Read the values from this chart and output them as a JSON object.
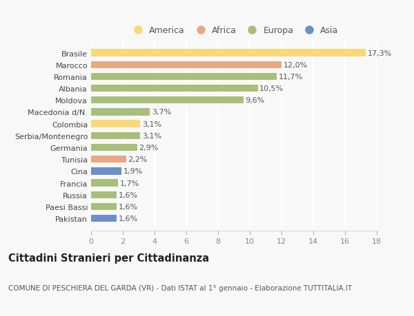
{
  "categories": [
    "Pakistan",
    "Paesi Bassi",
    "Russia",
    "Francia",
    "Cina",
    "Tunisia",
    "Germania",
    "Serbia/Montenegro",
    "Colombia",
    "Macedonia d/N.",
    "Moldova",
    "Albania",
    "Romania",
    "Marocco",
    "Brasile"
  ],
  "values": [
    1.6,
    1.6,
    1.6,
    1.7,
    1.9,
    2.2,
    2.9,
    3.1,
    3.1,
    3.7,
    9.6,
    10.5,
    11.7,
    12.0,
    17.3
  ],
  "labels": [
    "1,6%",
    "1,6%",
    "1,6%",
    "1,7%",
    "1,9%",
    "2,2%",
    "2,9%",
    "3,1%",
    "3,1%",
    "3,7%",
    "9,6%",
    "10,5%",
    "11,7%",
    "12,0%",
    "17,3%"
  ],
  "colors": [
    "#6b8fcc",
    "#a8bf7a",
    "#a8bf7a",
    "#a8bf7a",
    "#6b8fcc",
    "#e8a882",
    "#a8bf7a",
    "#a8bf7a",
    "#f8d878",
    "#a8bf7a",
    "#a8bf7a",
    "#a8bf7a",
    "#a8bf7a",
    "#e8a882",
    "#f8d878"
  ],
  "legend": [
    {
      "label": "America",
      "color": "#f8d878"
    },
    {
      "label": "Africa",
      "color": "#e8a882"
    },
    {
      "label": "Europa",
      "color": "#a8bf7a"
    },
    {
      "label": "Asia",
      "color": "#6b8fcc"
    }
  ],
  "title": "Cittadini Stranieri per Cittadinanza",
  "subtitle": "COMUNE DI PESCHIERA DEL GARDA (VR) - Dati ISTAT al 1° gennaio - Elaborazione TUTTITALIA.IT",
  "xlim": [
    0,
    18
  ],
  "xticks": [
    0,
    2,
    4,
    6,
    8,
    10,
    12,
    14,
    16,
    18
  ],
  "background_color": "#f8f8f8",
  "bar_height": 0.6,
  "label_fontsize": 8,
  "ytick_fontsize": 8,
  "xtick_fontsize": 8,
  "title_fontsize": 10.5,
  "subtitle_fontsize": 7.5
}
